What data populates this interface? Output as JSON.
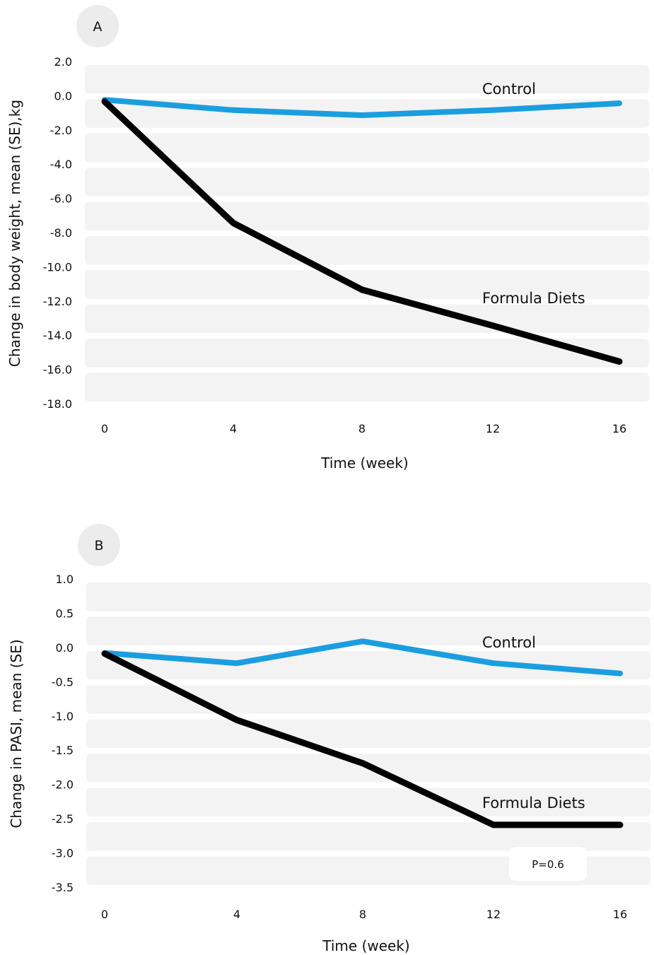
{
  "chart_data": [
    {
      "type": "line",
      "panel": "A",
      "xlabel": "Time (week)",
      "ylabel": "Change in body weight, mean (SE),kg",
      "x": [
        0,
        4,
        8,
        12,
        16
      ],
      "x_tick_labels": [
        "0",
        "4",
        "8",
        "12",
        "16"
      ],
      "y_tick_labels": [
        "2.0",
        "0.0",
        "-2.0",
        "-4.0",
        "-6.0",
        "-8.0",
        "-10.0",
        "-12.0",
        "-14.0",
        "-16.0",
        "-18.0"
      ],
      "ylim": [
        -18,
        2
      ],
      "grid": "horizontal bands",
      "series": [
        {
          "name": "Control",
          "values": [
            -0.2,
            -0.8,
            -1.1,
            -0.8,
            -0.4
          ],
          "color": "#1a9ee0"
        },
        {
          "name": "Formula Diets",
          "values": [
            -0.3,
            -7.4,
            -11.3,
            -13.4,
            -15.5
          ],
          "color": "#000000"
        }
      ]
    },
    {
      "type": "line",
      "panel": "B",
      "xlabel": "Time (week)",
      "ylabel": "Change in PASI, mean (SE)",
      "x": [
        0,
        4,
        8,
        12,
        16
      ],
      "x_tick_labels": [
        "0",
        "4",
        "8",
        "12",
        "16"
      ],
      "y_tick_labels": [
        "1.0",
        "0.5",
        "0.0",
        "-0.5",
        "-1.0",
        "-1.5",
        "-2.0",
        "-2.5",
        "-3.0",
        "-3.5"
      ],
      "ylim": [
        -3.5,
        1.0
      ],
      "grid": "horizontal bands",
      "annotation": "P=0.6",
      "series": [
        {
          "name": "Control",
          "values": [
            -0.07,
            -0.22,
            0.1,
            -0.22,
            -0.37
          ],
          "color": "#1a9ee0"
        },
        {
          "name": "Formula Diets",
          "values": [
            -0.08,
            -1.05,
            -1.68,
            -2.58,
            -2.58
          ],
          "color": "#000000"
        }
      ]
    }
  ]
}
